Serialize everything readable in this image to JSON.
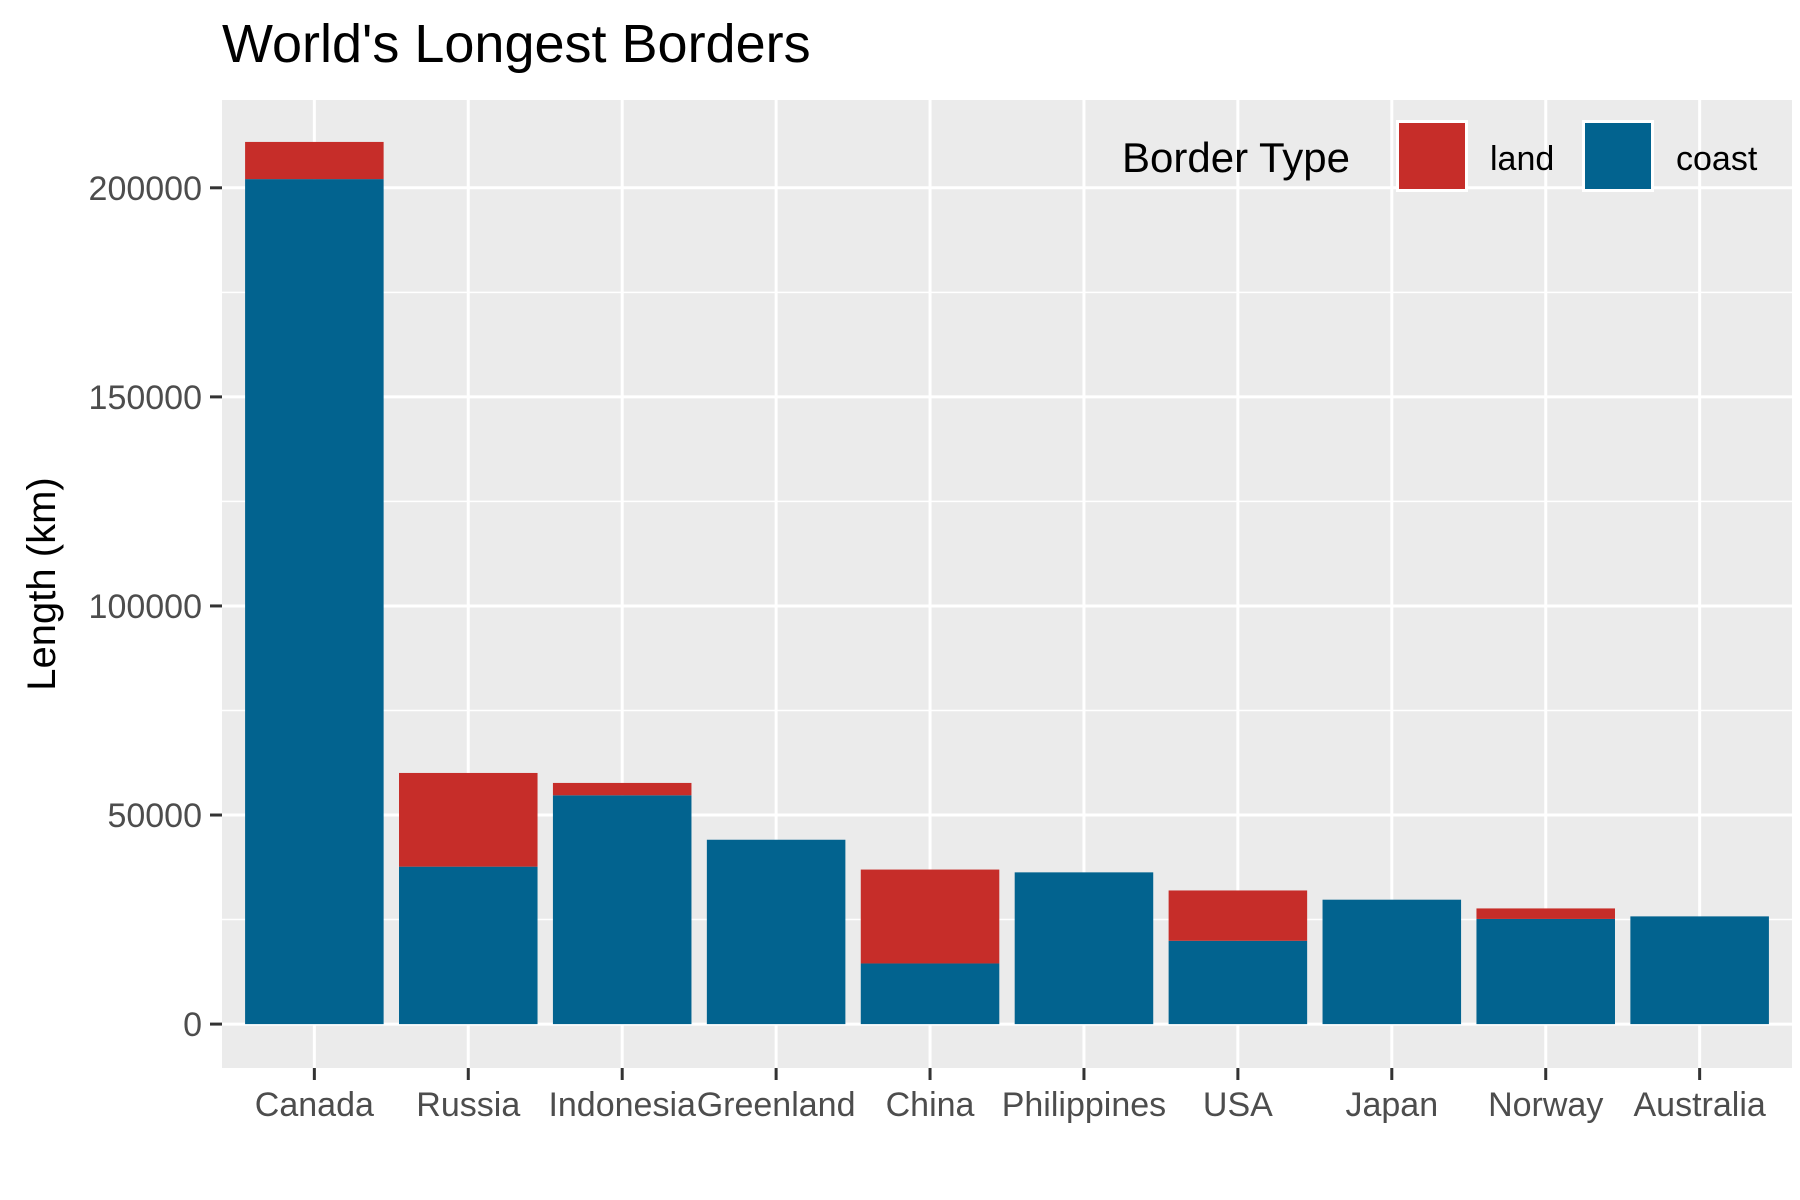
{
  "chart_data": {
    "type": "bar",
    "stacked": true,
    "title": "World's Longest Borders",
    "xlabel": "",
    "ylabel": "Length (km)",
    "ylim": [
      -10500,
      221000
    ],
    "yticks": [
      0,
      50000,
      100000,
      150000,
      200000
    ],
    "ytick_labels": [
      "0",
      "50000",
      "100000",
      "150000",
      "200000"
    ],
    "grid": true,
    "categories": [
      "Canada",
      "Russia",
      "Indonesia",
      "Greenland",
      "China",
      "Philippines",
      "USA",
      "Japan",
      "Norway",
      "Australia"
    ],
    "series": [
      {
        "name": "coast",
        "color": "#02638f",
        "values": [
          202080,
          37653,
          54716,
          44087,
          14500,
          36289,
          19924,
          29751,
          25148,
          25760
        ]
      },
      {
        "name": "land",
        "color": "#c62d29",
        "values": [
          8893,
          22408,
          2958,
          0,
          22457,
          0,
          12034,
          0,
          2515,
          0
        ]
      }
    ],
    "legend": {
      "title": "Border Type",
      "position": "top-right",
      "entries": [
        {
          "label": "land",
          "color": "#c62d29"
        },
        {
          "label": "coast",
          "color": "#02638f"
        }
      ]
    },
    "panel_color": "#ebebeb",
    "grid_color": "#ffffff"
  }
}
